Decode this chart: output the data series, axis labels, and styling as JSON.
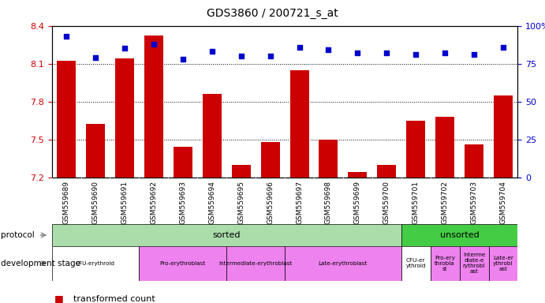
{
  "title": "GDS3860 / 200721_s_at",
  "samples": [
    "GSM559689",
    "GSM559690",
    "GSM559691",
    "GSM559692",
    "GSM559693",
    "GSM559694",
    "GSM559695",
    "GSM559696",
    "GSM559697",
    "GSM559698",
    "GSM559699",
    "GSM559700",
    "GSM559701",
    "GSM559702",
    "GSM559703",
    "GSM559704"
  ],
  "bar_values": [
    8.12,
    7.62,
    8.14,
    8.32,
    7.44,
    7.86,
    7.3,
    7.48,
    8.05,
    7.5,
    7.24,
    7.3,
    7.65,
    7.68,
    7.46,
    7.85
  ],
  "dot_values": [
    93,
    79,
    85,
    88,
    78,
    83,
    80,
    80,
    86,
    84,
    82,
    82,
    81,
    82,
    81,
    86
  ],
  "ylim": [
    7.2,
    8.4
  ],
  "yticks": [
    7.2,
    7.5,
    7.8,
    8.1,
    8.4
  ],
  "ytick_labels": [
    "7.2",
    "7.5",
    "7.8",
    "8.1",
    "8.4"
  ],
  "y2ticks": [
    0,
    25,
    50,
    75,
    100
  ],
  "y2tick_labels": [
    "0",
    "25",
    "50",
    "75",
    "100%"
  ],
  "bar_color": "#cc0000",
  "dot_color": "#0000cc",
  "protocol_row": [
    {
      "label": "sorted",
      "start": 0,
      "end": 11,
      "color": "#aaddaa"
    },
    {
      "label": "unsorted",
      "start": 12,
      "end": 15,
      "color": "#44cc44"
    }
  ],
  "dev_row": [
    {
      "label": "CFU-erythroid",
      "start": 0,
      "end": 2,
      "color": "#ffffff"
    },
    {
      "label": "Pro-erythroblast",
      "start": 3,
      "end": 5,
      "color": "#ee82ee"
    },
    {
      "label": "Intermediate-erythroblast",
      "start": 6,
      "end": 7,
      "color": "#ee82ee"
    },
    {
      "label": "Late-erythroblast",
      "start": 8,
      "end": 11,
      "color": "#ee82ee"
    },
    {
      "label": "CFU-er\nythroid",
      "start": 12,
      "end": 12,
      "color": "#ffffff"
    },
    {
      "label": "Pro-ery\nthrobla\nst",
      "start": 13,
      "end": 13,
      "color": "#ee82ee"
    },
    {
      "label": "Interme\ndiate-e\nrythrobl\nast",
      "start": 14,
      "end": 14,
      "color": "#ee82ee"
    },
    {
      "label": "Late-er\nythrobl\nast",
      "start": 15,
      "end": 15,
      "color": "#ee82ee"
    }
  ]
}
